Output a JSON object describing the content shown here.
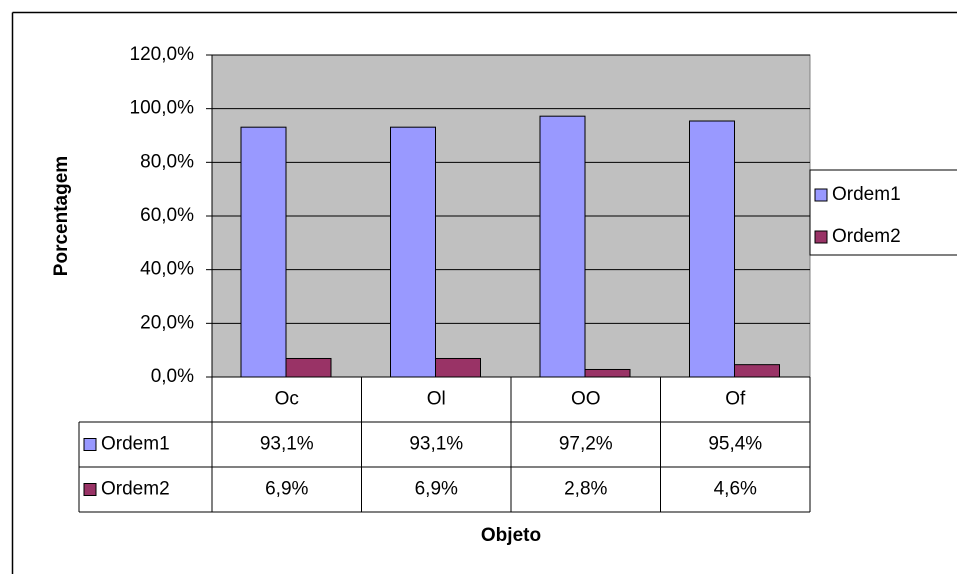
{
  "chart_data": {
    "type": "bar",
    "x_label": "Objeto",
    "y_label": "Porcentagem",
    "categories": [
      "Oc",
      "Ol",
      "OO",
      "Of"
    ],
    "series": [
      {
        "name": "Ordem1",
        "color": "#9999ff",
        "values": [
          93.1,
          93.1,
          97.2,
          95.4
        ],
        "value_labels": [
          "93,1%",
          "93,1%",
          "97,2%",
          "95,4%"
        ]
      },
      {
        "name": "Ordem2",
        "color": "#993366",
        "values": [
          6.9,
          6.9,
          2.8,
          4.6
        ],
        "value_labels": [
          "6,9%",
          "6,9%",
          "2,8%",
          "4,6%"
        ]
      }
    ],
    "ylim": [
      0,
      120
    ],
    "yticks": [
      {
        "value": 0,
        "label": "0,0%"
      },
      {
        "value": 20,
        "label": "20,0%"
      },
      {
        "value": 40,
        "label": "40,0%"
      },
      {
        "value": 60,
        "label": "60,0%"
      },
      {
        "value": 80,
        "label": "80,0%"
      },
      {
        "value": 100,
        "label": "100,0%"
      },
      {
        "value": 120,
        "label": "120,0%"
      }
    ],
    "grid": true,
    "legend": "right",
    "plot_background": "#c0c0c0"
  }
}
